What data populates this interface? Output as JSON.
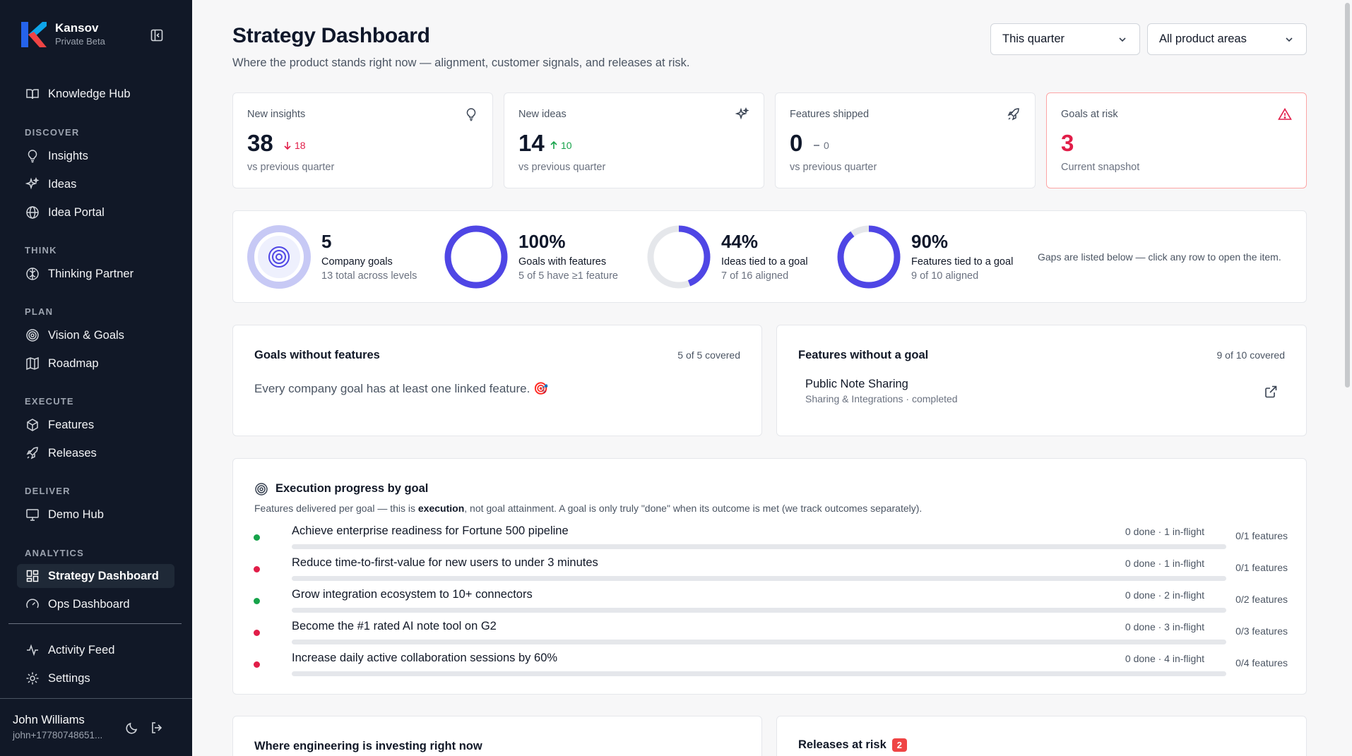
{
  "brand": {
    "name": "Kansov",
    "subtitle": "Private Beta"
  },
  "sidebar": {
    "top_item": "Knowledge Hub",
    "sections": [
      {
        "label": "DISCOVER",
        "items": [
          "Insights",
          "Ideas",
          "Idea Portal"
        ]
      },
      {
        "label": "THINK",
        "items": [
          "Thinking Partner"
        ]
      },
      {
        "label": "PLAN",
        "items": [
          "Vision & Goals",
          "Roadmap"
        ]
      },
      {
        "label": "EXECUTE",
        "items": [
          "Features",
          "Releases"
        ]
      },
      {
        "label": "DELIVER",
        "items": [
          "Demo Hub"
        ]
      },
      {
        "label": "ANALYTICS",
        "items": [
          "Strategy Dashboard",
          "Ops Dashboard"
        ]
      }
    ],
    "active_item": "Strategy Dashboard",
    "bottom_items": [
      "Activity Feed",
      "Settings"
    ],
    "user": {
      "name": "John Williams",
      "email": "john+17780748651..."
    }
  },
  "header": {
    "title": "Strategy Dashboard",
    "subtitle": "Where the product stands right now — alignment, customer signals, and releases at risk.",
    "period_select": "This quarter",
    "area_select": "All product areas"
  },
  "stats": [
    {
      "label": "New insights",
      "value": "38",
      "delta": "18",
      "delta_dir": "down",
      "foot": "vs previous quarter",
      "icon": "lightbulb-icon"
    },
    {
      "label": "New ideas",
      "value": "14",
      "delta": "10",
      "delta_dir": "up",
      "foot": "vs previous quarter",
      "icon": "sparkles-icon"
    },
    {
      "label": "Features shipped",
      "value": "0",
      "delta": "0",
      "delta_dir": "flat",
      "foot": "vs previous quarter",
      "icon": "rocket-icon"
    },
    {
      "label": "Goals at risk",
      "value": "3",
      "delta": "",
      "delta_dir": "none",
      "foot": "Current snapshot",
      "icon": "alert-triangle-icon"
    }
  ],
  "alignment": {
    "items": [
      {
        "value": "5",
        "label": "Company goals",
        "sub": "13 total across levels",
        "fraction": 1.0
      },
      {
        "value": "100%",
        "label": "Goals with features",
        "sub": "5 of 5 have ≥1 feature",
        "fraction": 1.0
      },
      {
        "value": "44%",
        "label": "Ideas tied to a goal",
        "sub": "7 of 16 aligned",
        "fraction": 0.44
      },
      {
        "value": "90%",
        "label": "Features tied to a goal",
        "sub": "9 of 10 aligned",
        "fraction": 0.9
      }
    ],
    "note": "Gaps are listed below — click any row to open the item."
  },
  "goals_without_features": {
    "title": "Goals without features",
    "count": "5 of 5 covered",
    "message": "Every company goal has at least one linked feature. 🎯"
  },
  "features_without_goal": {
    "title": "Features without a goal",
    "count": "9 of 10 covered",
    "items": [
      {
        "name": "Public Note Sharing",
        "meta": "Sharing & Integrations · completed"
      }
    ]
  },
  "execution": {
    "title": "Execution progress by goal",
    "subtitle_pre": "Features delivered per goal — this is ",
    "subtitle_bold": "execution",
    "subtitle_post": ", not goal attainment. A goal is only truly \"done\" when its outcome is met (we track outcomes separately).",
    "goals": [
      {
        "name": "Achieve enterprise readiness for Fortune 500 pipeline",
        "stat": "0 done · 1 in-flight",
        "count": "0/1 features",
        "status": "green",
        "progress": 0
      },
      {
        "name": "Reduce time-to-first-value for new users to under 3 minutes",
        "stat": "0 done · 1 in-flight",
        "count": "0/1 features",
        "status": "red",
        "progress": 0
      },
      {
        "name": "Grow integration ecosystem to 10+ connectors",
        "stat": "0 done · 2 in-flight",
        "count": "0/2 features",
        "status": "green",
        "progress": 0
      },
      {
        "name": "Become the #1 rated AI note tool on G2",
        "stat": "0 done · 3 in-flight",
        "count": "0/3 features",
        "status": "red",
        "progress": 0
      },
      {
        "name": "Increase daily active collaboration sessions by 60%",
        "stat": "0 done · 4 in-flight",
        "count": "0/4 features",
        "status": "red",
        "progress": 0
      }
    ]
  },
  "bottom": {
    "engineering_title": "Where engineering is investing right now",
    "releases_title": "Releases at risk",
    "releases_badge": "2"
  },
  "colors": {
    "accent": "#4f46e5",
    "danger": "#e11d48",
    "success": "#16a34a",
    "sidebar_bg": "#111827"
  }
}
